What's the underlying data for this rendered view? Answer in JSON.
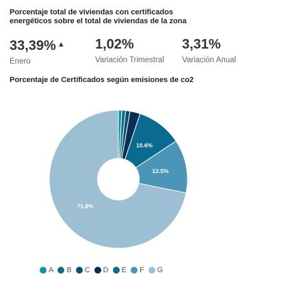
{
  "header": {
    "title": "Porcentaje total de viviendas con certificados energéticos sobre el total de viviendas de la zona"
  },
  "kpis": [
    {
      "value": "33,39%",
      "label": "Enero",
      "arrow": "▲"
    },
    {
      "value": "1,02%",
      "label": "Variación Trimestral"
    },
    {
      "value": "3,31%",
      "label": "Variación Anual"
    }
  ],
  "chart_data": {
    "type": "pie",
    "title": "Porcentaje de Certificados según emisiones de co2",
    "categories": [
      "A",
      "B",
      "C",
      "D",
      "E",
      "F",
      "G"
    ],
    "values": [
      0.8,
      0.9,
      1.0,
      2.4,
      10.6,
      12.5,
      71.8
    ],
    "data_labels": [
      "",
      "",
      "",
      "",
      "10.6%",
      "12.5%",
      "71.8%"
    ],
    "colors": [
      "#1b8fa8",
      "#0e6e8c",
      "#0b4f6e",
      "#0a2e52",
      "#0a6a8f",
      "#4a95b8",
      "#9dbfd4"
    ],
    "donut_hole": true,
    "legend_position": "bottom"
  }
}
